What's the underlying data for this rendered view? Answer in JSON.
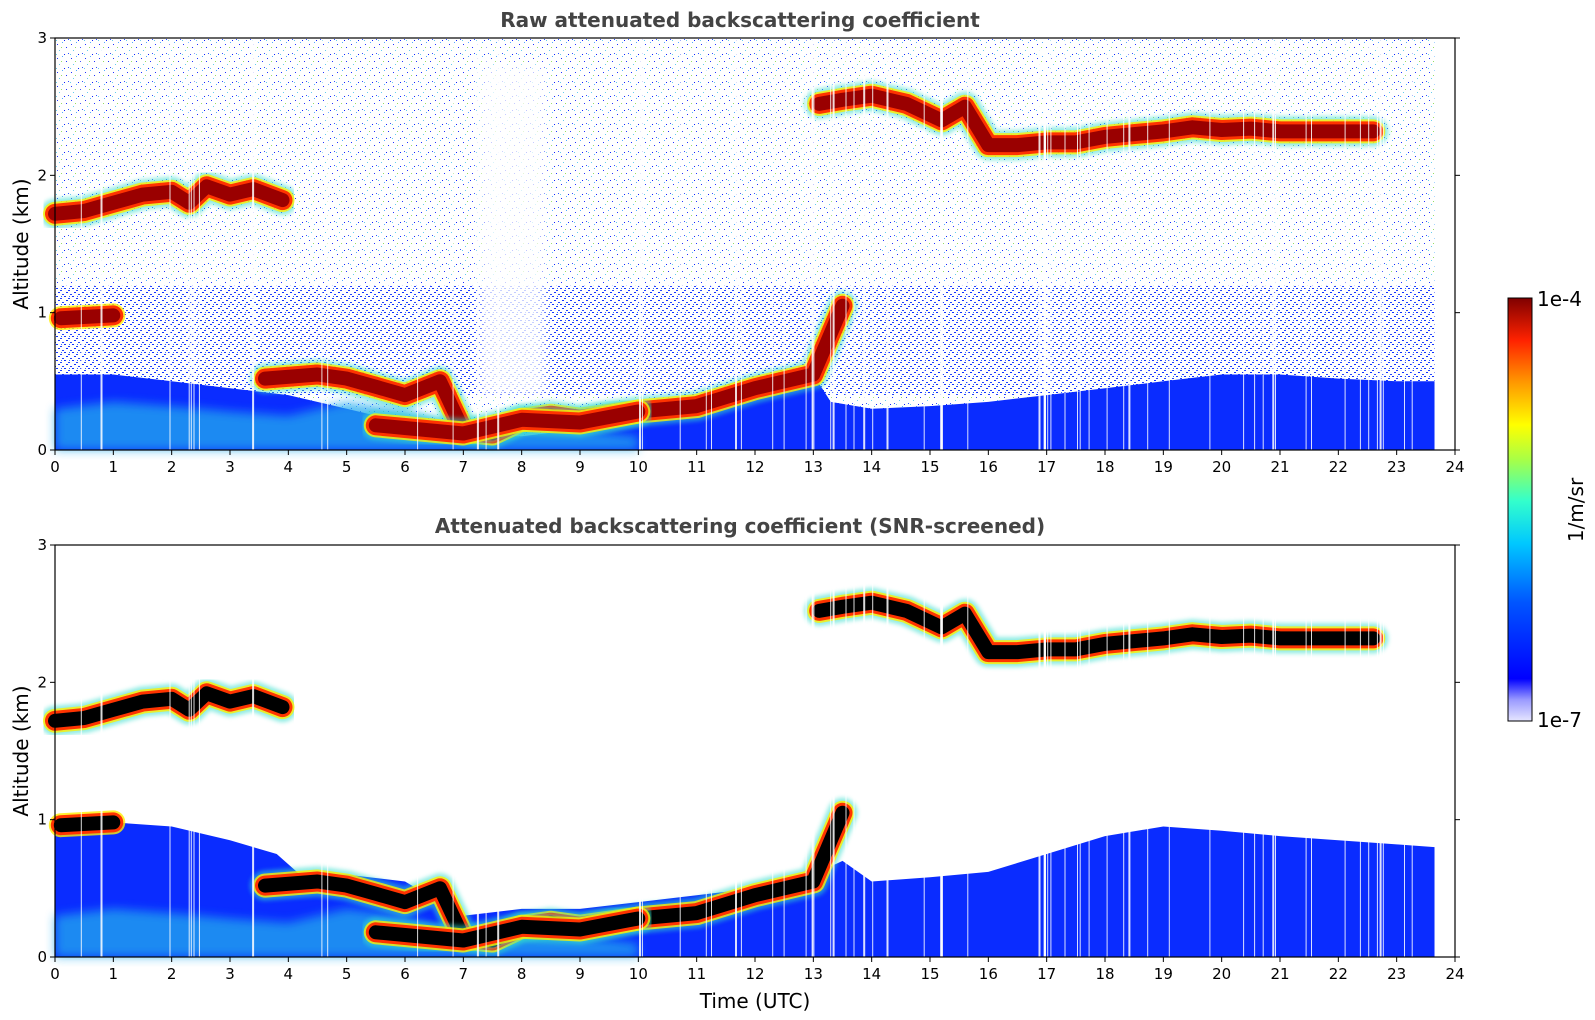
{
  "chart_data": [
    {
      "type": "heatmap",
      "id": "top",
      "title": "Raw attenuated backscattering coefficient",
      "xlabel": "",
      "ylabel": "Altitude (km)",
      "xlim": [
        0,
        24
      ],
      "ylim": [
        0,
        3
      ],
      "xticks": [
        "0",
        "1",
        "2",
        "3",
        "4",
        "5",
        "6",
        "7",
        "8",
        "9",
        "10",
        "11",
        "12",
        "13",
        "14",
        "15",
        "16",
        "17",
        "18",
        "19",
        "20",
        "21",
        "22",
        "23",
        "24"
      ],
      "yticks": [
        "0",
        "1",
        "2",
        "3"
      ],
      "data_end_time": 23.65,
      "layers": [
        {
          "name": "cloud-morning",
          "t": [
            0,
            0.5,
            1.0,
            1.5,
            2.0,
            2.3,
            2.6,
            3.0,
            3.4,
            3.9
          ],
          "alt": [
            1.72,
            1.74,
            1.8,
            1.86,
            1.88,
            1.8,
            1.92,
            1.86,
            1.9,
            1.82
          ]
        },
        {
          "name": "cloud-low-1",
          "t": [
            0.1,
            1.0
          ],
          "alt": [
            0.96,
            0.98
          ]
        },
        {
          "name": "boundary-layer-top",
          "t": [
            3.6,
            4.5,
            5.0,
            5.5,
            6.0,
            6.6,
            7.0,
            7.5,
            8.0,
            8.5,
            9.0,
            10.0,
            11.0,
            12.0,
            13.0,
            13.5
          ],
          "alt": [
            0.52,
            0.55,
            0.52,
            0.46,
            0.4,
            0.5,
            0.14,
            0.12,
            0.22,
            0.25,
            0.22,
            0.28,
            0.32,
            0.45,
            0.55,
            1.05
          ]
        },
        {
          "name": "residual-layer",
          "t": [
            5.5,
            6.0,
            7.0,
            8.0,
            9.0,
            10.0
          ],
          "alt": [
            0.18,
            0.16,
            0.12,
            0.22,
            0.2,
            0.28
          ]
        },
        {
          "name": "cloud-afternoon",
          "t": [
            13.1,
            13.5,
            14.0,
            14.6,
            15.2,
            15.6,
            16.0,
            16.5,
            17.0,
            17.5,
            18.0,
            18.5,
            19.0,
            19.5,
            20.0,
            20.5,
            21.0,
            21.5,
            22.0,
            22.6
          ],
          "alt": [
            2.52,
            2.55,
            2.58,
            2.52,
            2.4,
            2.5,
            2.22,
            2.22,
            2.24,
            2.24,
            2.28,
            2.3,
            2.32,
            2.35,
            2.33,
            2.34,
            2.32,
            2.32,
            2.32,
            2.32
          ]
        }
      ],
      "colorbar": {
        "label": "1/m/sr",
        "min_label": "1e-7",
        "max_label": "1e-4",
        "scale": "log"
      }
    },
    {
      "type": "heatmap",
      "id": "bottom",
      "title": "Attenuated backscattering coefficient (SNR-screened)",
      "xlabel": "Time (UTC)",
      "ylabel": "Altitude (km)",
      "xlim": [
        0,
        24
      ],
      "ylim": [
        0,
        3
      ],
      "xticks": [
        "0",
        "1",
        "2",
        "3",
        "4",
        "5",
        "6",
        "7",
        "8",
        "9",
        "10",
        "11",
        "12",
        "13",
        "14",
        "15",
        "16",
        "17",
        "18",
        "19",
        "20",
        "21",
        "22",
        "23",
        "24"
      ],
      "yticks": [
        "0",
        "1",
        "2",
        "3"
      ],
      "data_end_time": 23.65,
      "screened_boundary": {
        "t": [
          0,
          1,
          2,
          3,
          3.8,
          4.2,
          5,
          6,
          7,
          8,
          9,
          10,
          11,
          12,
          13,
          13.5,
          14,
          15,
          16,
          17,
          18,
          19,
          20,
          21,
          22,
          23,
          23.65
        ],
        "alt": [
          1.0,
          0.98,
          0.95,
          0.85,
          0.75,
          0.6,
          0.6,
          0.55,
          0.3,
          0.35,
          0.35,
          0.4,
          0.45,
          0.5,
          0.6,
          0.7,
          0.55,
          0.58,
          0.62,
          0.75,
          0.88,
          0.95,
          0.92,
          0.88,
          0.85,
          0.82,
          0.8
        ]
      }
    }
  ],
  "colors": {
    "background": "#ffffff",
    "title": "#444444",
    "saturated": "#000000",
    "colormap": [
      "#0000ff",
      "#00aaff",
      "#00ffcc",
      "#88ff44",
      "#ffff00",
      "#ff9900",
      "#ff2200",
      "#800000"
    ]
  }
}
